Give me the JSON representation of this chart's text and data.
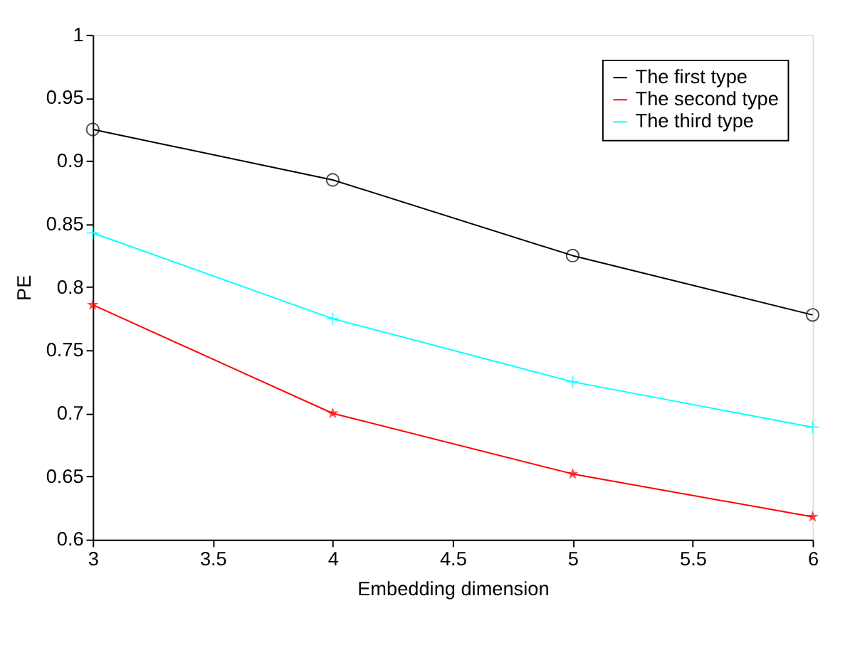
{
  "chart_data": {
    "type": "line",
    "xlabel": "Embedding dimension",
    "ylabel": "PE",
    "x": [
      3,
      4,
      5,
      6
    ],
    "series": [
      {
        "name": "The first type",
        "color": "#000000",
        "marker": "circle",
        "values": [
          0.925,
          0.885,
          0.825,
          0.778
        ]
      },
      {
        "name": "The second type",
        "color": "#ff0000",
        "marker": "star",
        "values": [
          0.786,
          0.7,
          0.652,
          0.618
        ]
      },
      {
        "name": "The third type",
        "color": "#00ffff",
        "marker": "cross",
        "values": [
          0.843,
          0.775,
          0.725,
          0.689
        ]
      }
    ],
    "xlim": [
      3,
      6
    ],
    "xticks": [
      3,
      3.5,
      4,
      4.5,
      5,
      5.5,
      6
    ],
    "ylim": [
      0.6,
      1
    ],
    "yticks": [
      0.6,
      0.65,
      0.7,
      0.75,
      0.8,
      0.85,
      0.9,
      0.95,
      1
    ],
    "grid": false,
    "legend": "top right",
    "line_style": "solid"
  }
}
